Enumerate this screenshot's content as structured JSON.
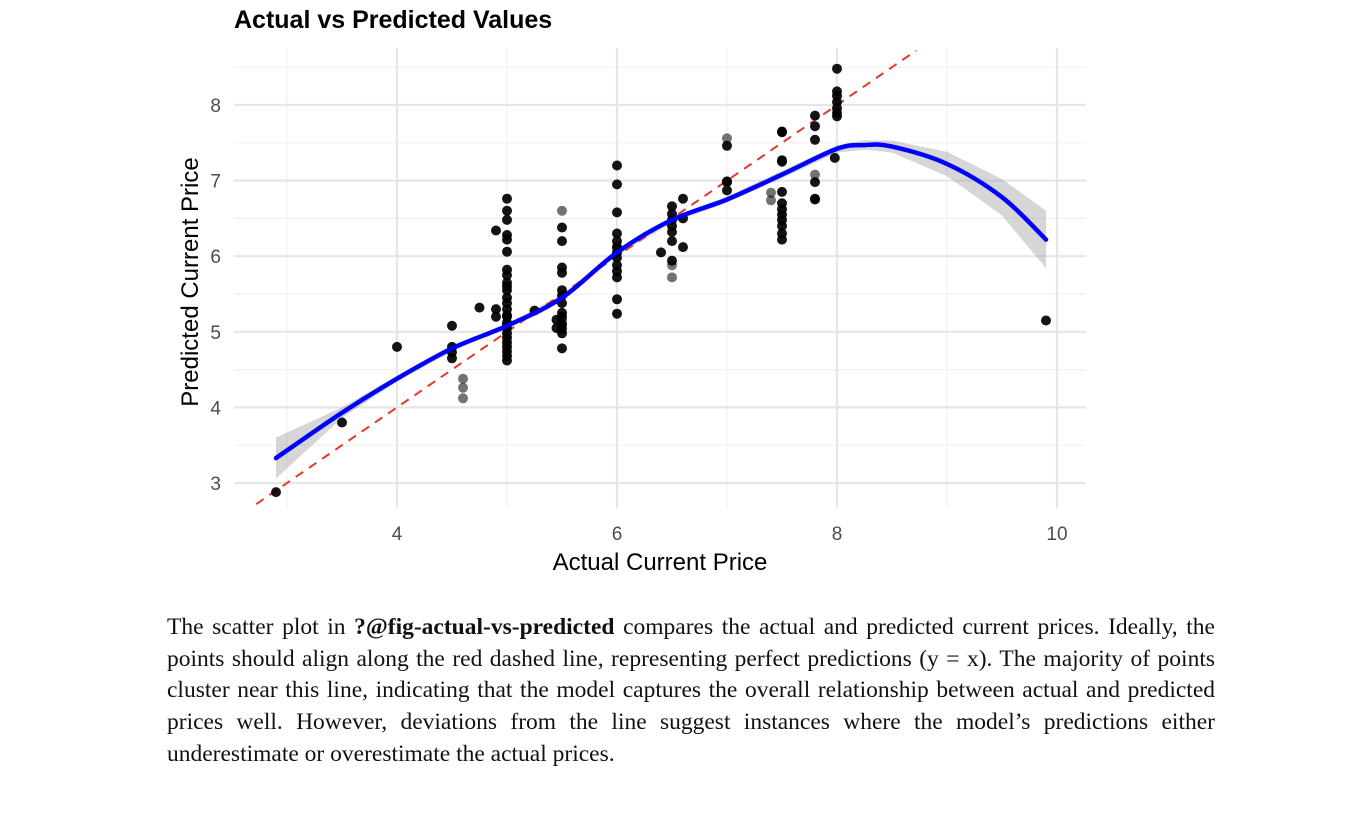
{
  "chart_data": {
    "type": "scatter",
    "title": "Actual vs Predicted Values",
    "xlabel": "Actual Current Price",
    "ylabel": "Predicted Current Price",
    "xlim": [
      2.75,
      10.5
    ],
    "ylim": [
      2.7,
      8.75
    ],
    "xticks": [
      4,
      6,
      8,
      10
    ],
    "yticks": [
      3,
      4,
      5,
      6,
      7,
      8
    ],
    "grid": true,
    "reference_line": {
      "type": "y = x",
      "color": "#e5382d",
      "style": "dashed"
    },
    "smooth_line": {
      "color": "#0000ff",
      "x": [
        2.9,
        3.5,
        4.0,
        4.5,
        5.0,
        5.5,
        6.0,
        6.5,
        7.0,
        7.5,
        8.0,
        8.25,
        8.5,
        9.0,
        9.5,
        9.9
      ],
      "y": [
        3.33,
        3.93,
        4.38,
        4.78,
        5.08,
        5.45,
        6.05,
        6.48,
        6.75,
        7.08,
        7.42,
        7.47,
        7.45,
        7.22,
        6.78,
        6.22
      ],
      "ci_upper": [
        3.6,
        4.0,
        4.42,
        4.82,
        5.11,
        5.49,
        6.09,
        6.52,
        6.79,
        7.13,
        7.47,
        7.53,
        7.53,
        7.38,
        7.02,
        6.6
      ],
      "ci_lower": [
        3.06,
        3.86,
        4.34,
        4.74,
        5.05,
        5.41,
        6.01,
        6.44,
        6.71,
        7.03,
        7.37,
        7.41,
        7.37,
        7.06,
        6.54,
        5.84
      ]
    },
    "points": {
      "x": [
        2.9,
        3.5,
        4.0,
        4.5,
        4.5,
        4.5,
        4.5,
        4.6,
        4.6,
        4.6,
        4.75,
        4.9,
        4.9,
        4.9,
        5.0,
        5.0,
        5.0,
        5.0,
        5.0,
        5.0,
        5.0,
        5.0,
        5.0,
        5.0,
        5.0,
        5.0,
        5.0,
        5.0,
        5.0,
        5.0,
        5.0,
        5.0,
        5.0,
        5.0,
        5.0,
        5.0,
        5.0,
        5.0,
        5.0,
        5.0,
        5.25,
        5.45,
        5.45,
        5.5,
        5.5,
        5.5,
        5.5,
        5.5,
        5.5,
        5.5,
        5.5,
        5.5,
        5.5,
        5.5,
        5.5,
        5.5,
        5.5,
        5.5,
        5.5,
        6.0,
        6.0,
        6.0,
        6.0,
        6.0,
        6.0,
        6.0,
        6.0,
        6.0,
        6.0,
        6.0,
        6.0,
        6.0,
        6.0,
        6.4,
        6.5,
        6.5,
        6.5,
        6.5,
        6.5,
        6.5,
        6.5,
        6.5,
        6.5,
        6.6,
        6.6,
        6.6,
        7.0,
        7.0,
        7.0,
        7.0,
        7.0,
        7.4,
        7.4,
        7.5,
        7.5,
        7.5,
        7.5,
        7.5,
        7.5,
        7.5,
        7.5,
        7.5,
        7.5,
        7.5,
        7.5,
        7.8,
        7.8,
        7.8,
        7.8,
        7.8,
        7.8,
        7.8,
        7.98,
        8.0,
        8.0,
        8.0,
        8.0,
        8.0,
        8.0,
        8.0,
        9.9
      ],
      "y": [
        2.88,
        3.8,
        4.8,
        5.08,
        4.8,
        4.73,
        4.65,
        4.38,
        4.26,
        4.12,
        5.32,
        6.34,
        5.3,
        5.2,
        6.76,
        6.6,
        6.48,
        6.28,
        6.22,
        6.06,
        5.82,
        5.75,
        5.65,
        5.55,
        5.45,
        5.38,
        5.3,
        5.22,
        5.12,
        5.05,
        4.98,
        4.92,
        4.86,
        4.8,
        4.74,
        4.68,
        4.62,
        5.2,
        5.1,
        5.6,
        5.28,
        5.16,
        5.05,
        6.6,
        6.38,
        6.2,
        5.85,
        5.78,
        5.55,
        5.48,
        5.38,
        5.25,
        5.2,
        5.16,
        5.1,
        5.04,
        4.98,
        4.78,
        5.1,
        7.2,
        6.95,
        6.58,
        6.3,
        6.2,
        6.12,
        6.05,
        5.98,
        5.88,
        5.8,
        5.72,
        5.43,
        5.24,
        6.12,
        6.05,
        6.66,
        6.56,
        6.48,
        6.4,
        6.32,
        6.2,
        5.94,
        5.88,
        5.72,
        6.76,
        6.5,
        6.12,
        7.56,
        7.46,
        6.99,
        6.98,
        6.87,
        6.84,
        6.74,
        7.65,
        7.64,
        7.27,
        7.25,
        6.85,
        6.7,
        6.62,
        6.55,
        6.48,
        6.4,
        6.3,
        6.22,
        7.86,
        7.72,
        7.54,
        7.08,
        6.98,
        6.76,
        6.75,
        7.3,
        8.48,
        8.18,
        8.12,
        8.04,
        7.96,
        7.9,
        7.85,
        5.15
      ],
      "color": "#000000",
      "faded_indices": [
        7,
        8,
        9,
        43,
        53,
        81,
        82,
        86,
        91,
        92,
        108
      ]
    }
  },
  "caption": {
    "prefix": "The scatter plot in ",
    "reference": "?@fig-actual-vs-predicted",
    "body": " compares the actual and predicted current prices. Ideally, the points should align along the red dashed line, representing perfect predictions (y = x). The majority of points cluster near this line, indicating that the model captures the overall relationship between actual and predicted prices well. However, deviations from the line suggest instances where the model’s predictions either underestimate or overestimate the actual prices."
  }
}
